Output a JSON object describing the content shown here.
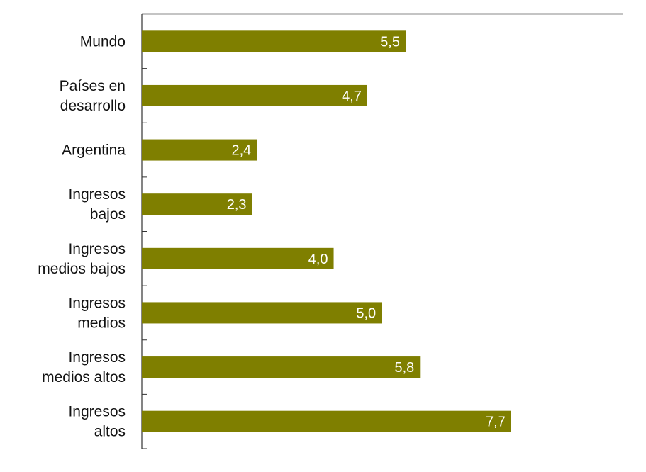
{
  "chart_data": {
    "type": "bar",
    "orientation": "horizontal",
    "categories": [
      [
        "Mundo"
      ],
      [
        "Países en",
        "desarrollo"
      ],
      [
        "Argentina"
      ],
      [
        "Ingresos",
        "bajos"
      ],
      [
        "Ingresos",
        "medios bajos"
      ],
      [
        "Ingresos",
        "medios"
      ],
      [
        "Ingresos",
        "medios altos"
      ],
      [
        "Ingresos",
        "altos"
      ]
    ],
    "values": [
      5.5,
      4.7,
      2.4,
      2.3,
      4.0,
      5.0,
      5.8,
      7.7
    ],
    "data_labels": [
      "5,5",
      "4,7",
      "2,4",
      "2,3",
      "4,0",
      "5,0",
      "5,8",
      "7,7"
    ],
    "xlim": [
      0,
      10
    ],
    "grid": false,
    "legend": "none",
    "colors": {
      "bar": "#7f7f00",
      "axis": "#333333",
      "label": "#ffffff",
      "text": "#111111"
    }
  }
}
